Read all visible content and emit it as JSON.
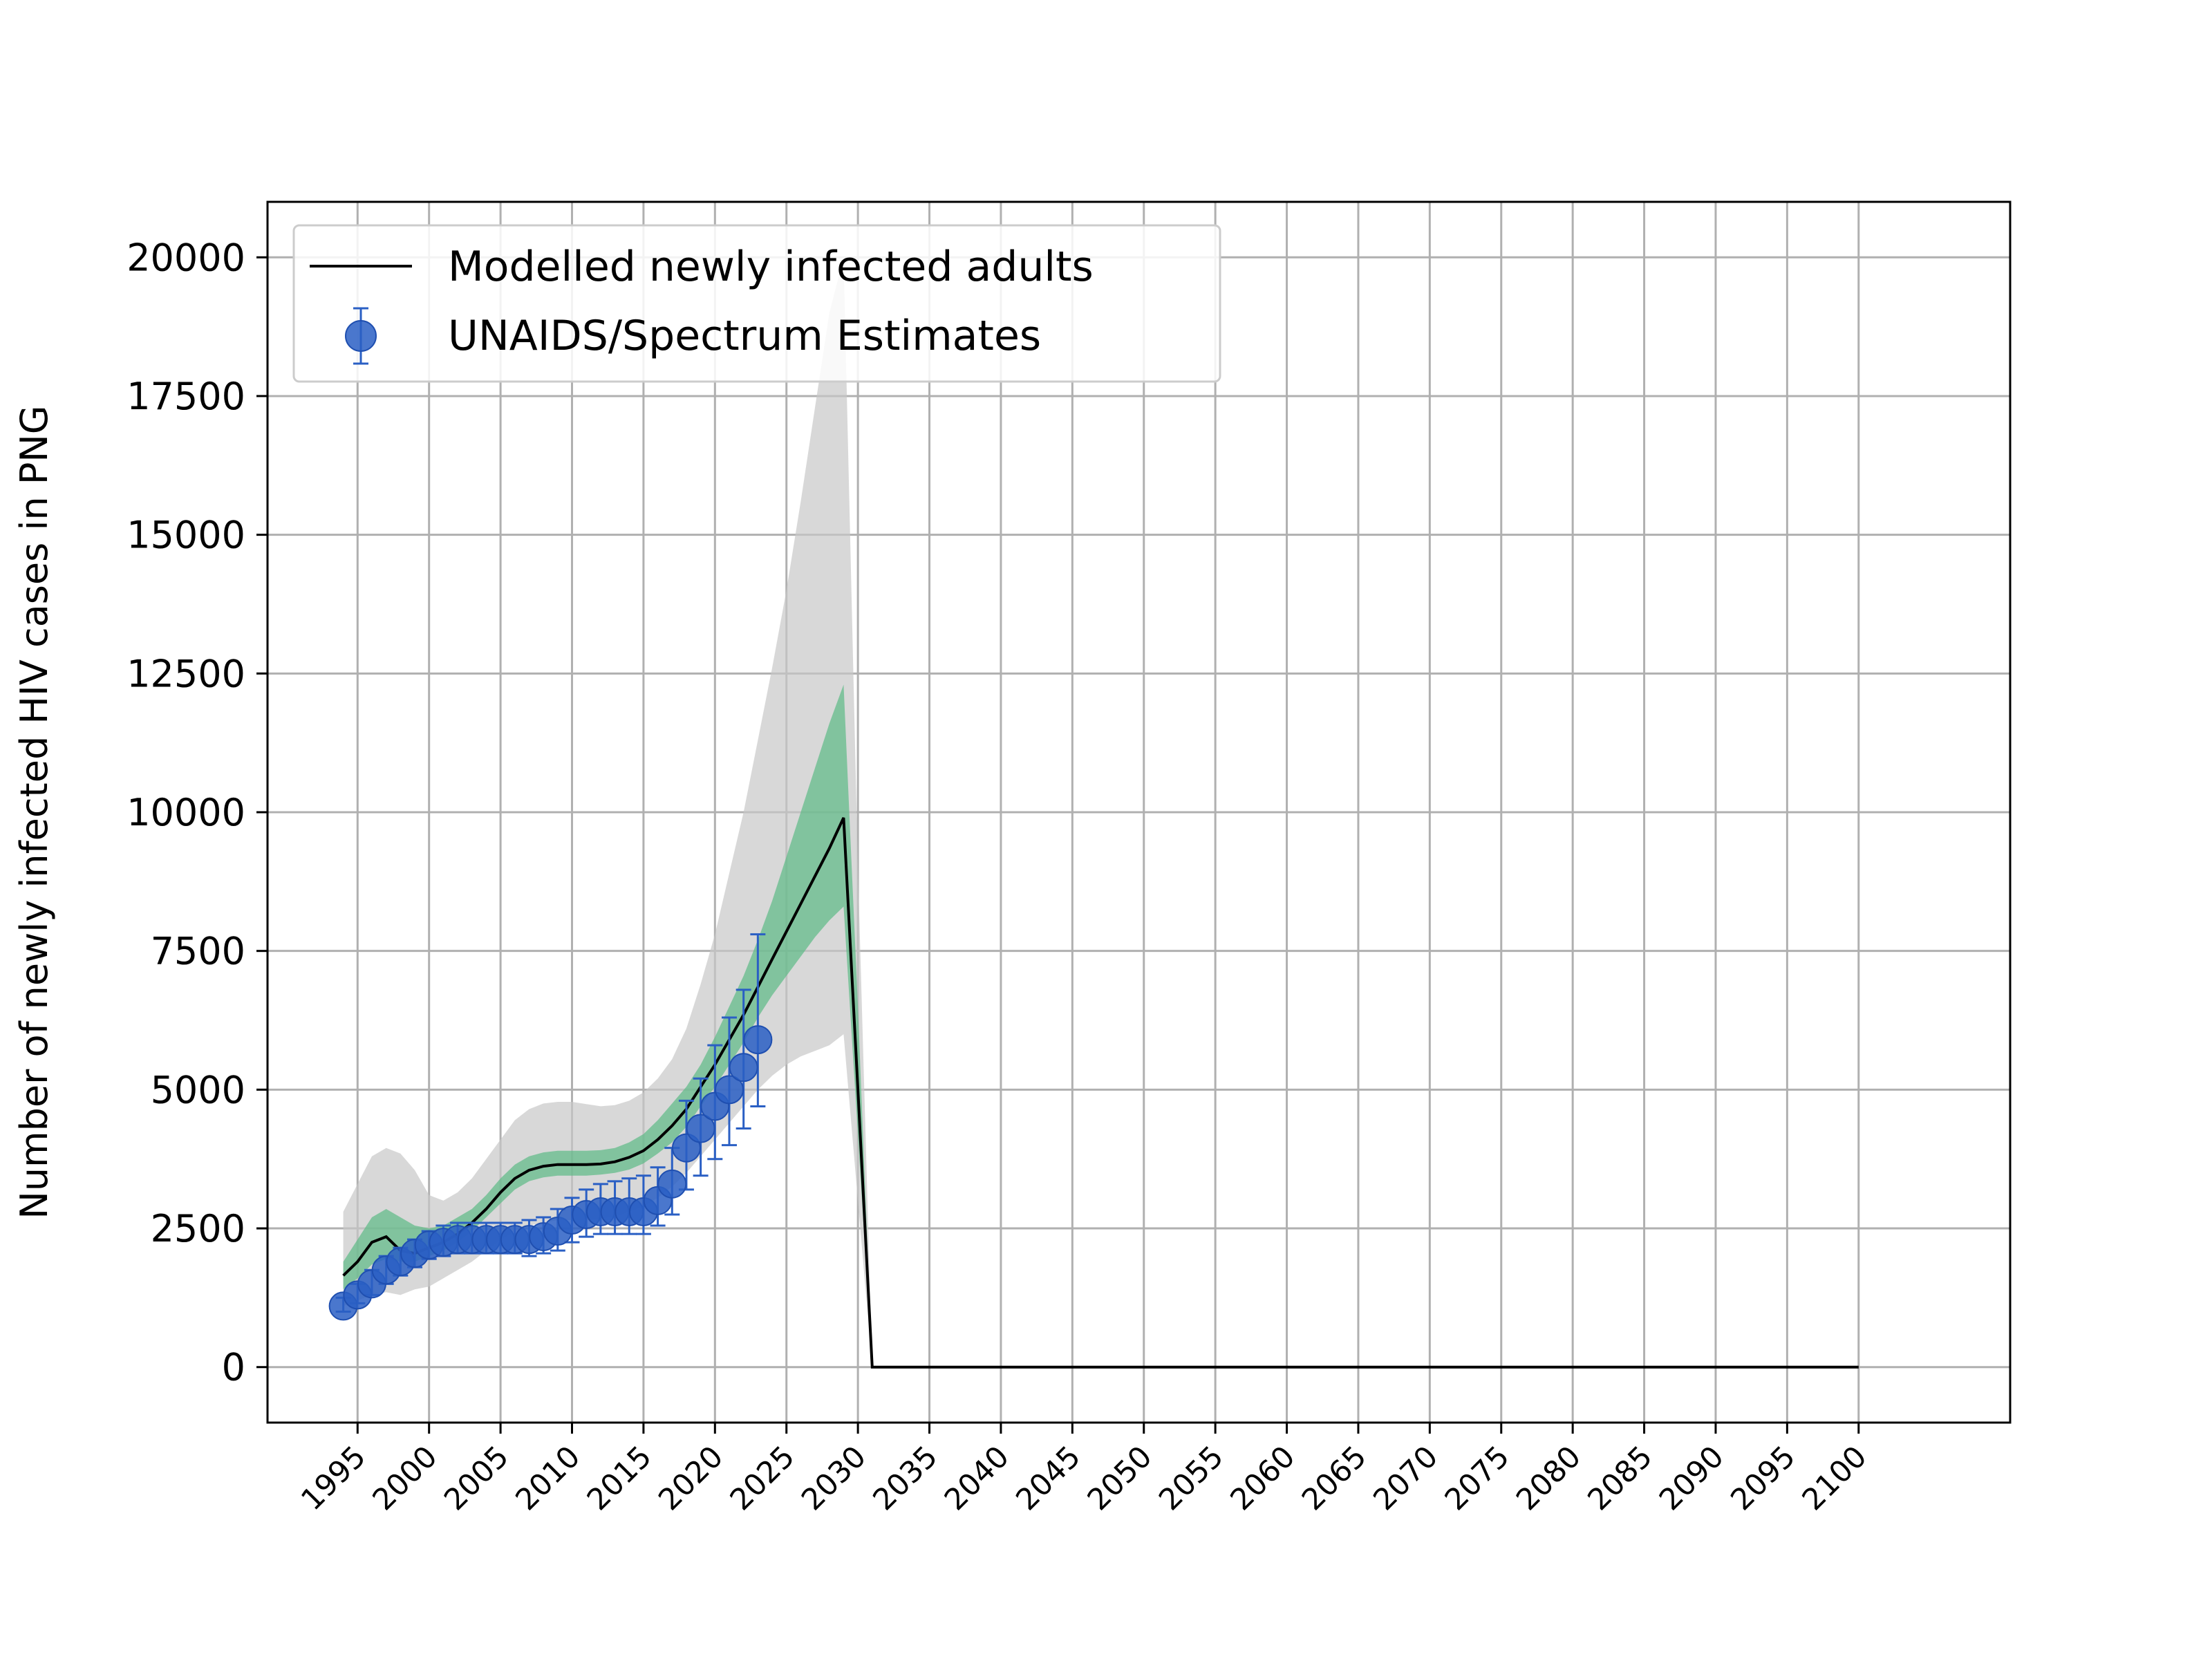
{
  "chart_data": {
    "type": "line",
    "title": "",
    "xlabel": "",
    "ylabel": "Number of newly infected HIV cases in PNG",
    "xlim": [
      1988.7,
      2110.6
    ],
    "ylim": [
      -1000,
      21000
    ],
    "grid": true,
    "legend_position": "top-left",
    "x_ticks": [
      1995,
      2000,
      2005,
      2010,
      2015,
      2020,
      2025,
      2030,
      2035,
      2040,
      2045,
      2050,
      2055,
      2060,
      2065,
      2070,
      2075,
      2080,
      2085,
      2090,
      2095,
      2100
    ],
    "y_ticks": [
      0,
      2500,
      5000,
      7500,
      10000,
      12500,
      15000,
      17500,
      20000
    ],
    "colors": {
      "model_line": "#000000",
      "estimate_marker": "#2a5fc4",
      "estimate_edge": "#1f4fb0",
      "green_band": "#5dbb86",
      "gray_band": "#c8c8c8",
      "grid": "#b0b0b0"
    },
    "series": [
      {
        "name": "Modelled newly infected adults",
        "kind": "line",
        "x": [
          1994,
          1995,
          1996,
          1997,
          1998,
          1999,
          2000,
          2001,
          2002,
          2003,
          2004,
          2005,
          2006,
          2007,
          2008,
          2009,
          2010,
          2011,
          2012,
          2013,
          2014,
          2015,
          2016,
          2017,
          2018,
          2019,
          2020,
          2021,
          2022,
          2023,
          2024,
          2025,
          2026,
          2027,
          2028,
          2029,
          2030,
          2031,
          2035,
          2040,
          2045,
          2050,
          2055,
          2060,
          2065,
          2070,
          2075,
          2080,
          2085,
          2090,
          2095,
          2100
        ],
        "y": [
          1650,
          1900,
          2250,
          2350,
          2100,
          2050,
          2150,
          2250,
          2400,
          2600,
          2850,
          3150,
          3400,
          3550,
          3620,
          3650,
          3650,
          3650,
          3660,
          3700,
          3780,
          3900,
          4100,
          4350,
          4650,
          5050,
          5450,
          5900,
          6350,
          6850,
          7350,
          7850,
          8350,
          8850,
          9350,
          9900,
          5000,
          0,
          0,
          0,
          0,
          0,
          0,
          0,
          0,
          0,
          0,
          0,
          0,
          0,
          0,
          0
        ]
      },
      {
        "name": "UNAIDS/Spectrum Estimates",
        "kind": "errorbar",
        "x": [
          1994,
          1995,
          1996,
          1997,
          1998,
          1999,
          2000,
          2001,
          2002,
          2003,
          2004,
          2005,
          2006,
          2007,
          2008,
          2009,
          2010,
          2011,
          2012,
          2013,
          2014,
          2015,
          2016,
          2017,
          2018,
          2019,
          2020,
          2021,
          2022,
          2023
        ],
        "y": [
          1100,
          1300,
          1500,
          1750,
          1900,
          2050,
          2200,
          2250,
          2300,
          2300,
          2300,
          2300,
          2300,
          2300,
          2350,
          2450,
          2650,
          2750,
          2800,
          2800,
          2800,
          2800,
          3000,
          3300,
          3950,
          4300,
          4700,
          5000,
          5400,
          5900
        ],
        "y_low": [
          1000,
          1150,
          1300,
          1500,
          1650,
          1800,
          1950,
          2000,
          2050,
          2050,
          2050,
          2050,
          2050,
          2000,
          2050,
          2100,
          2250,
          2350,
          2400,
          2400,
          2400,
          2400,
          2550,
          2750,
          3200,
          3450,
          3750,
          4000,
          4300,
          4700
        ],
        "y_high": [
          1250,
          1500,
          1750,
          2000,
          2150,
          2300,
          2450,
          2550,
          2600,
          2600,
          2600,
          2600,
          2600,
          2650,
          2700,
          2850,
          3050,
          3200,
          3300,
          3350,
          3400,
          3450,
          3600,
          3950,
          4800,
          5200,
          5800,
          6300,
          6800,
          7800
        ]
      },
      {
        "name": "",
        "kind": "band",
        "x": [
          1994,
          1995,
          1996,
          1997,
          1998,
          1999,
          2000,
          2001,
          2002,
          2003,
          2004,
          2005,
          2006,
          2007,
          2008,
          2009,
          2010,
          2011,
          2012,
          2013,
          2014,
          2015,
          2016,
          2017,
          2018,
          2019,
          2020,
          2021,
          2022,
          2023,
          2024,
          2025,
          2026,
          2027,
          2028,
          2029,
          2030,
          2031
        ],
        "y_low": [
          1400,
          1600,
          1850,
          1950,
          1900,
          1900,
          2000,
          2100,
          2250,
          2450,
          2700,
          2950,
          3200,
          3350,
          3420,
          3450,
          3450,
          3450,
          3470,
          3500,
          3560,
          3670,
          3850,
          4050,
          4330,
          4700,
          5050,
          5450,
          5850,
          6300,
          6700,
          7050,
          7400,
          7750,
          8050,
          8300,
          4200,
          0
        ],
        "y_high": [
          1900,
          2300,
          2700,
          2850,
          2700,
          2550,
          2500,
          2550,
          2700,
          2850,
          3100,
          3400,
          3650,
          3800,
          3870,
          3900,
          3900,
          3900,
          3910,
          3950,
          4050,
          4200,
          4450,
          4750,
          5050,
          5450,
          5950,
          6500,
          7050,
          7700,
          8400,
          9200,
          10000,
          10800,
          11600,
          12300,
          6500,
          0
        ]
      },
      {
        "name": "",
        "kind": "band",
        "x": [
          1994,
          1995,
          1996,
          1997,
          1998,
          1999,
          2000,
          2001,
          2002,
          2003,
          2004,
          2005,
          2006,
          2007,
          2008,
          2009,
          2010,
          2011,
          2012,
          2013,
          2014,
          2015,
          2016,
          2017,
          2018,
          2019,
          2020,
          2021,
          2022,
          2023,
          2024,
          2025,
          2026,
          2027,
          2028,
          2029,
          2030,
          2031
        ],
        "y_low": [
          1100,
          1200,
          1300,
          1350,
          1300,
          1400,
          1450,
          1600,
          1750,
          1900,
          2100,
          2300,
          2450,
          2550,
          2600,
          2650,
          2650,
          2650,
          2680,
          2720,
          2800,
          2900,
          3050,
          3250,
          3500,
          3800,
          4100,
          4400,
          4700,
          5000,
          5250,
          5450,
          5600,
          5700,
          5800,
          6000,
          3000,
          0
        ],
        "y_high": [
          2800,
          3300,
          3800,
          3950,
          3850,
          3550,
          3100,
          3000,
          3150,
          3400,
          3750,
          4100,
          4450,
          4650,
          4750,
          4780,
          4780,
          4740,
          4700,
          4720,
          4800,
          4950,
          5200,
          5550,
          6100,
          6900,
          7800,
          8900,
          10000,
          11300,
          12600,
          14000,
          15600,
          17300,
          19000,
          20000,
          9000,
          0
        ]
      }
    ]
  }
}
